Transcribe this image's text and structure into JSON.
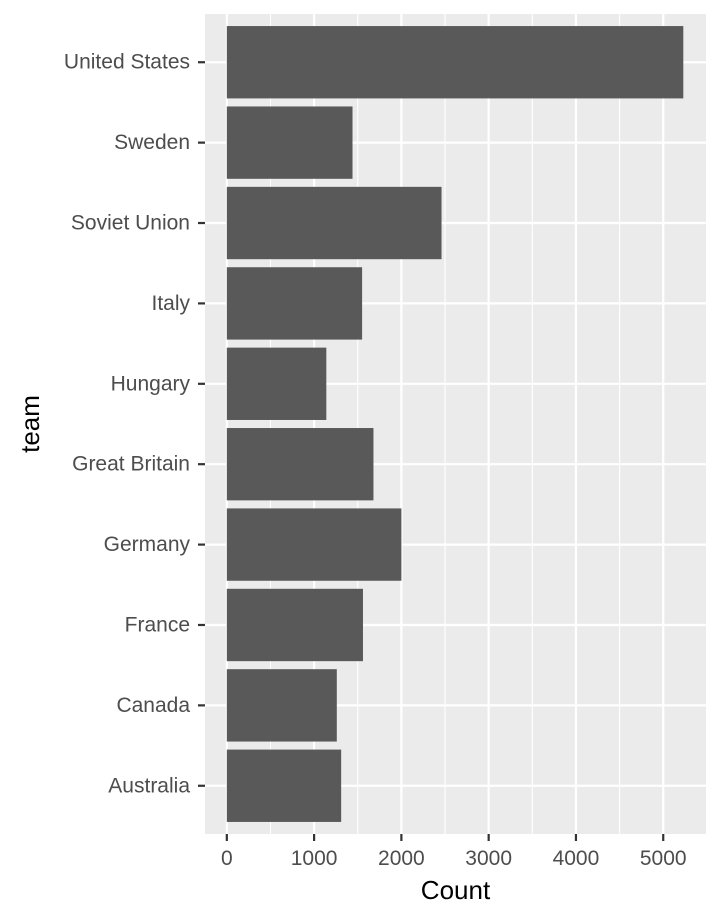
{
  "chart_data": {
    "type": "bar",
    "orientation": "horizontal",
    "title": "",
    "xlabel": "Count",
    "ylabel": "team",
    "categories": [
      "Australia",
      "Canada",
      "France",
      "Germany",
      "Great Britain",
      "Hungary",
      "Italy",
      "Soviet Union",
      "Sweden",
      "United States"
    ],
    "values": [
      1310,
      1260,
      1560,
      2000,
      1680,
      1140,
      1550,
      2460,
      1440,
      5230
    ],
    "xlim": [
      -250,
      5490
    ],
    "xticks": [
      0,
      1000,
      2000,
      3000,
      4000,
      5000
    ],
    "xtick_labels": [
      "0",
      "1000",
      "2000",
      "3000",
      "4000",
      "5000"
    ],
    "grid": true,
    "legend": "none",
    "colors": {
      "bar": "#595959",
      "panel": "#ebebeb",
      "grid_major": "#ffffff",
      "tick_label": "#4d4d4d",
      "tick_mark": "#333333",
      "axis_title": "#000000"
    }
  }
}
